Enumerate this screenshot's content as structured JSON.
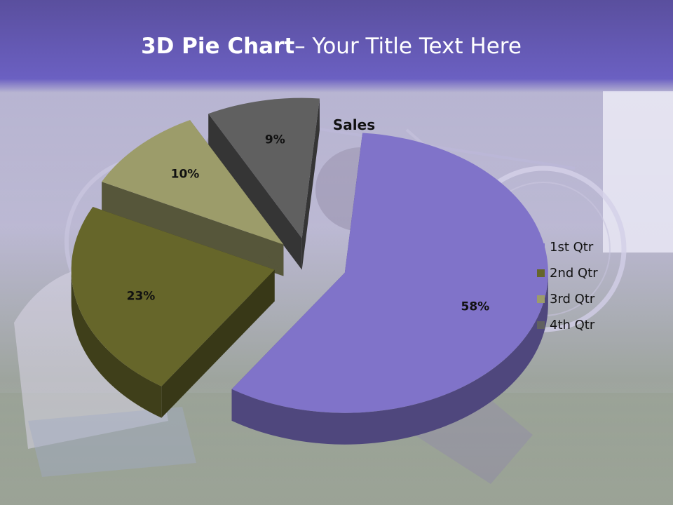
{
  "slide": {
    "title_bold": "3D Pie Chart",
    "title_rest": "– Your Title Text Here",
    "header_color": "#6a5fc0"
  },
  "chart_data": {
    "type": "pie",
    "title": "Sales",
    "categories": [
      "1st Qtr",
      "2nd Qtr",
      "3rd Qtr",
      "4th Qtr"
    ],
    "values": [
      58,
      23,
      10,
      9
    ],
    "data_labels": [
      "58%",
      "23%",
      "10%",
      "9%"
    ],
    "colors": [
      "#8073c9",
      "#66662a",
      "#9c9c6a",
      "#606060"
    ],
    "style": "3d-exploded",
    "legend": "right"
  }
}
